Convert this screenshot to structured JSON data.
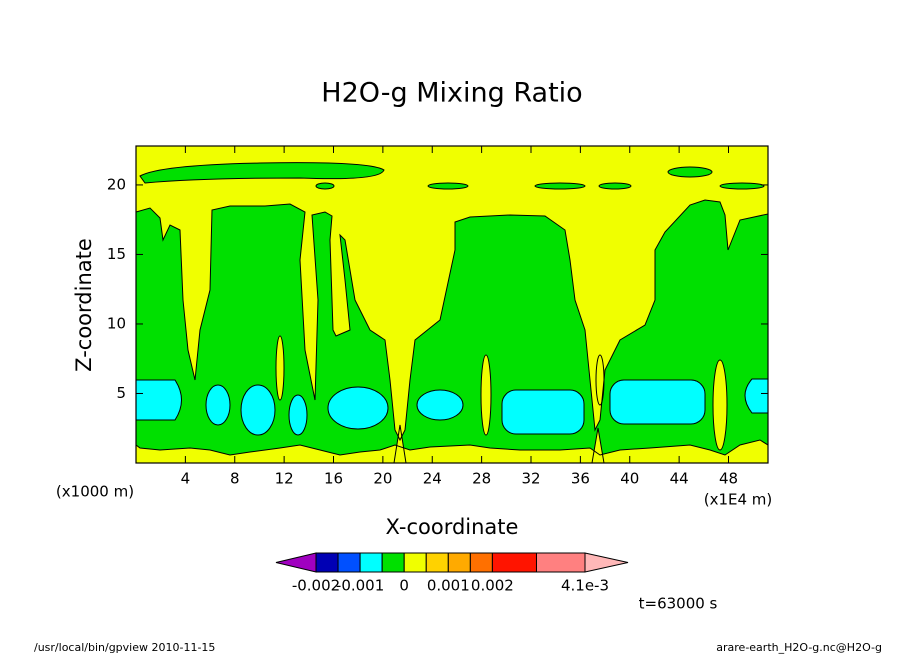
{
  "chart_data": {
    "type": "contour",
    "title": "H2O-g Mixing Ratio",
    "xlabel": "X-coordinate",
    "ylabel": "Z-coordinate",
    "x_unit_label": "(x1000 m)",
    "x_scale_label": "(x1E4 m)",
    "xlim": [
      0,
      51.2
    ],
    "ylim": [
      0,
      22.8
    ],
    "xticks": [
      4,
      8,
      12,
      16,
      20,
      24,
      28,
      32,
      36,
      40,
      44,
      48
    ],
    "yticks": [
      5,
      10,
      15,
      20
    ],
    "colorbar": {
      "levels": [
        -0.002,
        -0.0015,
        -0.001,
        -0.0005,
        0,
        0.0005,
        0.001,
        0.0015,
        0.002,
        0.003,
        0.0041
      ],
      "colors": [
        "#0000b4",
        "#0050ff",
        "#00ffff",
        "#00e000",
        "#f0ff00",
        "#ffd200",
        "#ffaa00",
        "#ff7000",
        "#ff1400",
        "#ff8080"
      ],
      "under_color": "#a000c0",
      "over_color": "#ffb8b8",
      "ticks": [
        -0.002,
        -0.001,
        0,
        0.001,
        0.002,
        {
          "value": 0.0041,
          "label": "4.1e-3"
        }
      ]
    },
    "annotation": "t=63000 s",
    "footer_left": "/usr/local/bin/gpview  2010-11-15",
    "footer_right": "arare-earth_H2O-g.nc@H2O-g"
  }
}
